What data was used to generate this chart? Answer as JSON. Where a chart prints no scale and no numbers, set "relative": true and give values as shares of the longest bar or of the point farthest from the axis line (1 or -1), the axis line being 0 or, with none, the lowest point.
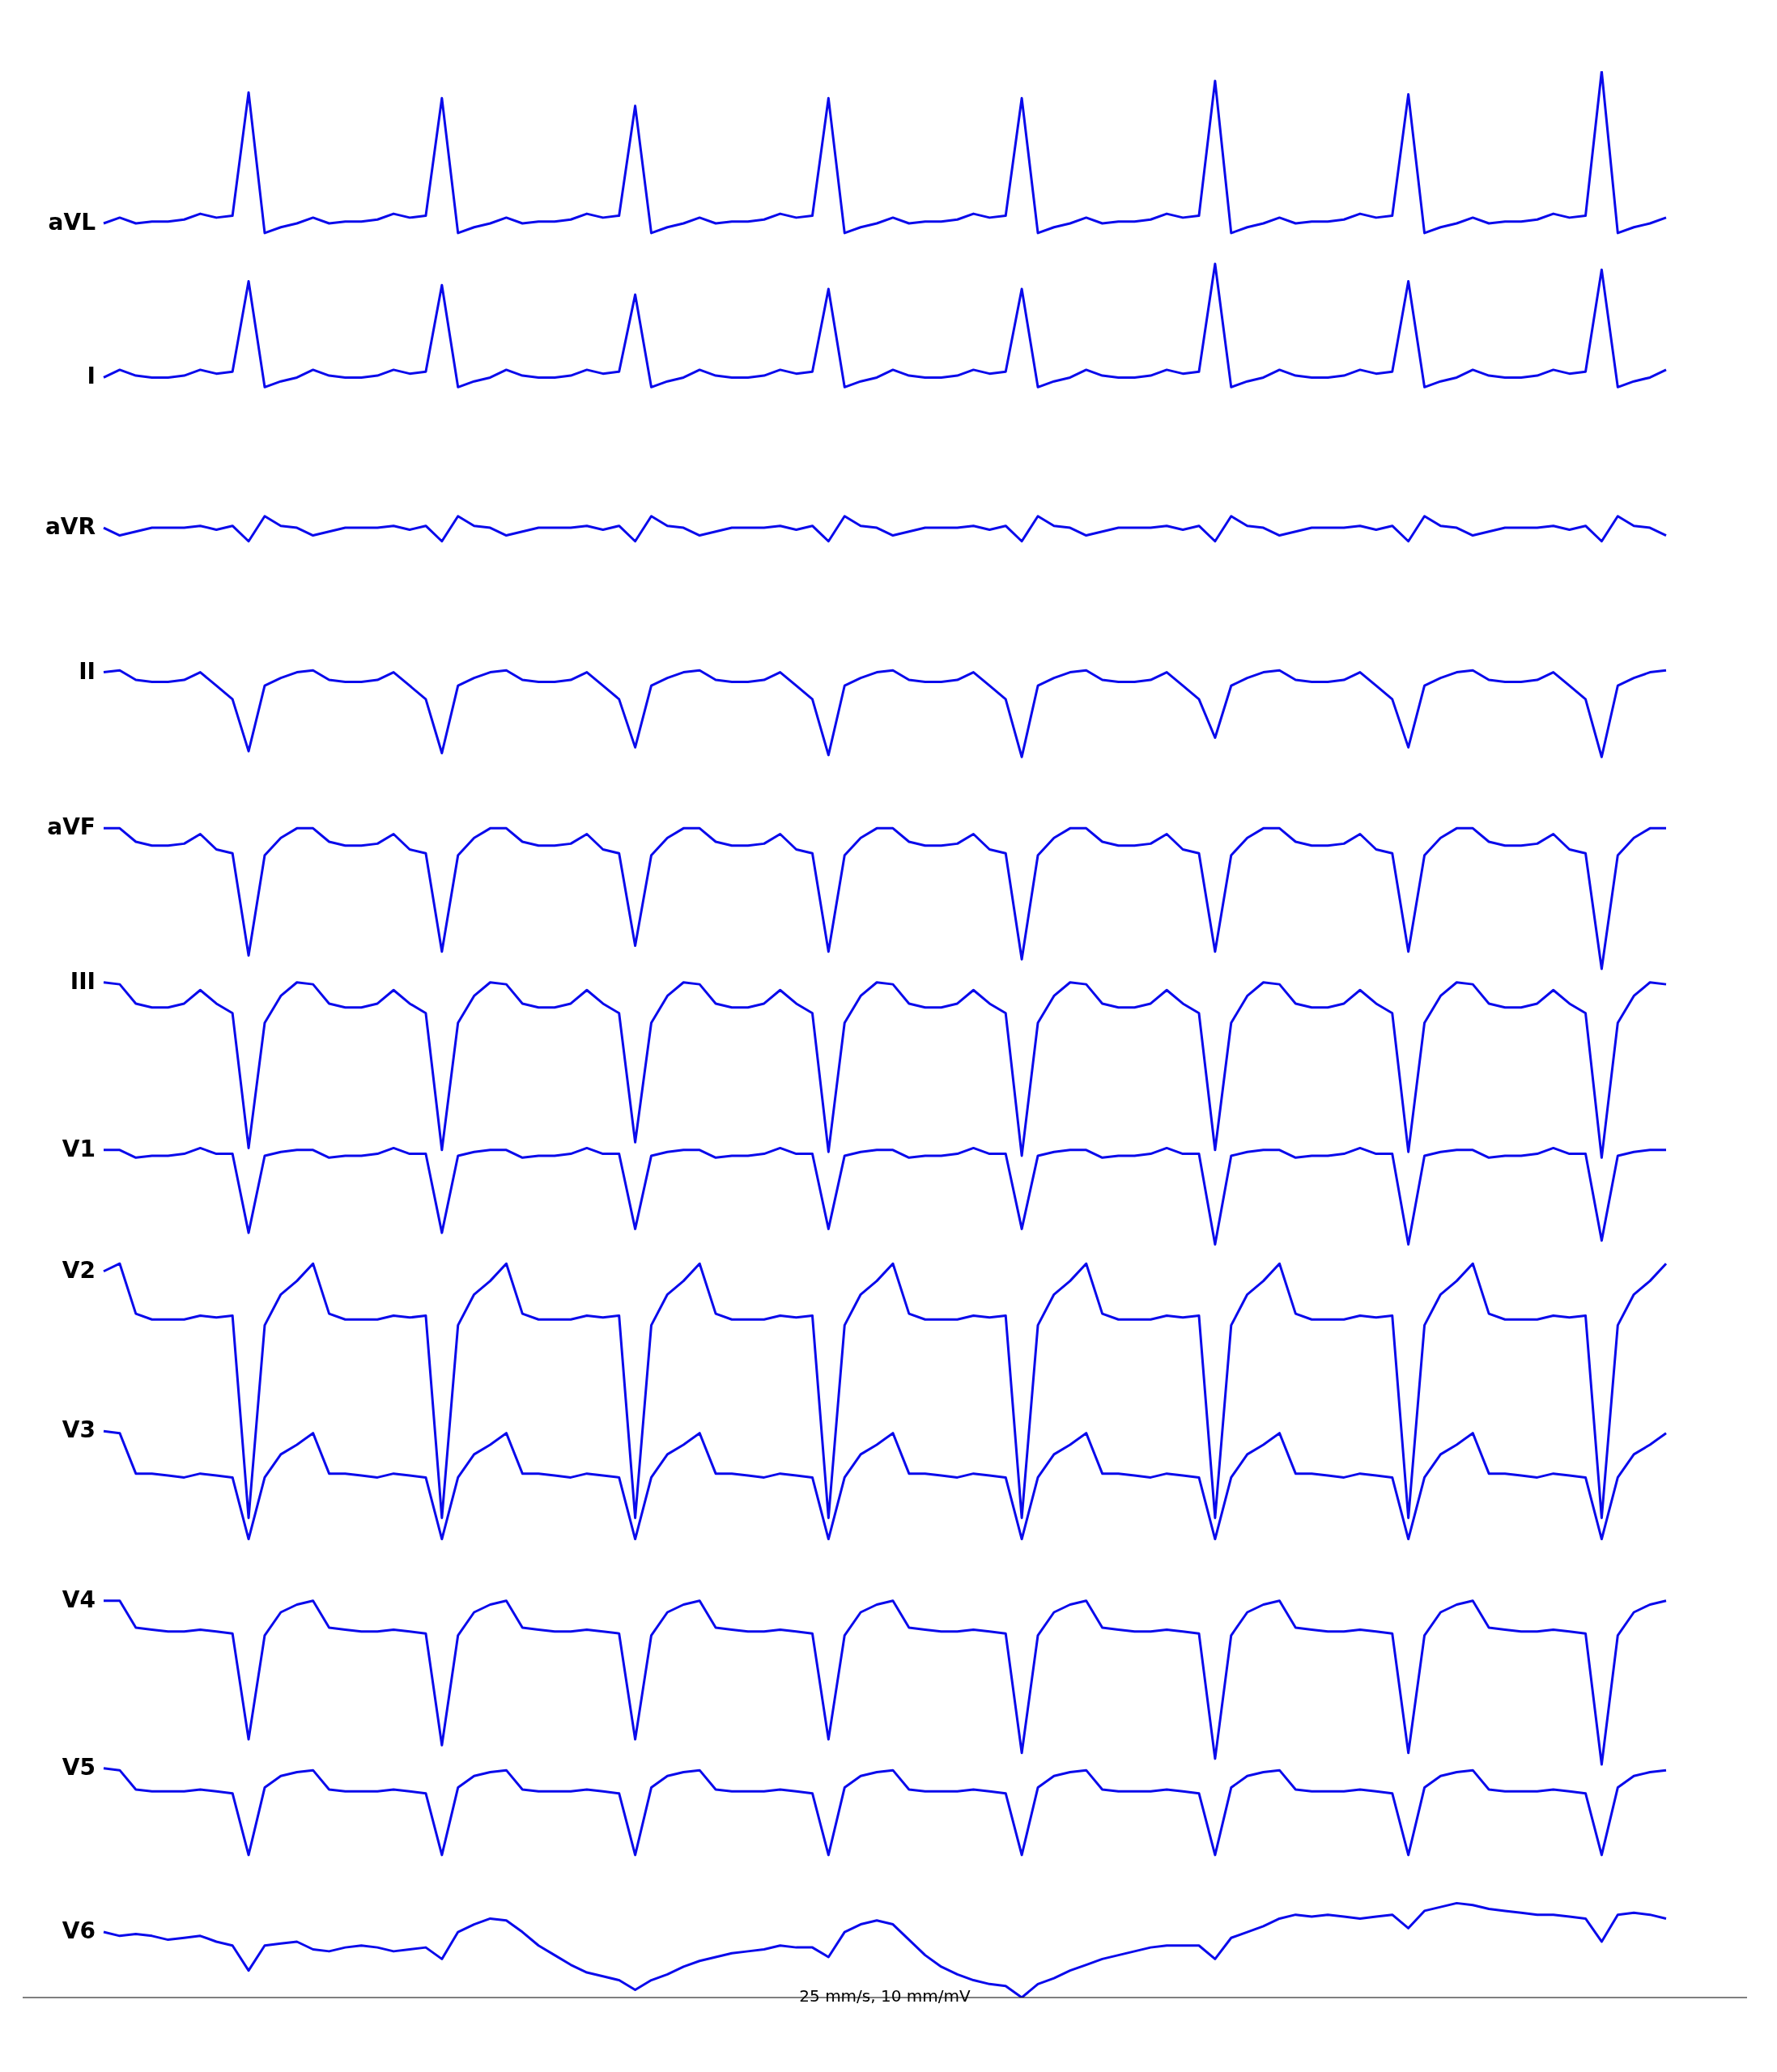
{
  "chart_data": {
    "type": "line",
    "relative": true,
    "legend": false,
    "marker": "none",
    "line_style": "solid",
    "categories": [
      null,
      null,
      null,
      null,
      null,
      null,
      null,
      null,
      null,
      null,
      null,
      null,
      null,
      null,
      null,
      null,
      null,
      null,
      null,
      null,
      null,
      null,
      null,
      null,
      null,
      null,
      null,
      null,
      null,
      null,
      null,
      null,
      null,
      null,
      null,
      null,
      null,
      null,
      null,
      null,
      null,
      null,
      null,
      null,
      null,
      null,
      null,
      null,
      null,
      null,
      null,
      null,
      null,
      null,
      null,
      null,
      null,
      null,
      null,
      null,
      null,
      null,
      null,
      null,
      null,
      null,
      null,
      null,
      null,
      null,
      null,
      null,
      null,
      null,
      null,
      null,
      null,
      null,
      null,
      null,
      null,
      null,
      null,
      null,
      null,
      null,
      null,
      null,
      null,
      null,
      null,
      null,
      null,
      null,
      null,
      null,
      null,
      null
    ],
    "annotations": [
      "25 mm/s, 10 mm/mV"
    ],
    "series": [
      {
        "name": "aVL",
        "color": "#0a0aeb",
        "values": [
          0.921,
          0.924,
          0.921,
          0.922,
          0.922,
          0.923,
          0.926,
          0.924,
          0.925,
          0.989,
          0.916,
          0.919,
          0.921,
          0.924,
          0.921,
          0.922,
          0.922,
          0.923,
          0.926,
          0.924,
          0.925,
          0.986,
          0.916,
          0.919,
          0.921,
          0.924,
          0.921,
          0.922,
          0.922,
          0.923,
          0.926,
          0.924,
          0.925,
          0.982,
          0.916,
          0.919,
          0.921,
          0.924,
          0.921,
          0.922,
          0.922,
          0.923,
          0.926,
          0.924,
          0.925,
          0.986,
          0.916,
          0.919,
          0.921,
          0.924,
          0.921,
          0.922,
          0.922,
          0.923,
          0.926,
          0.924,
          0.925,
          0.986,
          0.916,
          0.919,
          0.921,
          0.924,
          0.921,
          0.922,
          0.922,
          0.923,
          0.926,
          0.924,
          0.925,
          0.995,
          0.916,
          0.919,
          0.921,
          0.924,
          0.921,
          0.922,
          0.922,
          0.923,
          0.926,
          0.924,
          0.925,
          0.988,
          0.916,
          0.919,
          0.921,
          0.924,
          0.921,
          0.922,
          0.922,
          0.923,
          0.926,
          0.924,
          0.925,
          1,
          0.916,
          0.919,
          0.921,
          0.924
        ]
      },
      {
        "name": "I",
        "color": "#0a0aeb",
        "values": [
          0.841,
          0.845,
          0.842,
          0.841,
          0.841,
          0.842,
          0.845,
          0.843,
          0.844,
          0.891,
          0.836,
          0.839,
          0.841,
          0.845,
          0.842,
          0.841,
          0.841,
          0.842,
          0.845,
          0.843,
          0.844,
          0.889,
          0.836,
          0.839,
          0.841,
          0.845,
          0.842,
          0.841,
          0.841,
          0.842,
          0.845,
          0.843,
          0.844,
          0.884,
          0.836,
          0.839,
          0.841,
          0.845,
          0.842,
          0.841,
          0.841,
          0.842,
          0.845,
          0.843,
          0.844,
          0.887,
          0.836,
          0.839,
          0.841,
          0.845,
          0.842,
          0.841,
          0.841,
          0.842,
          0.845,
          0.843,
          0.844,
          0.887,
          0.836,
          0.839,
          0.841,
          0.845,
          0.842,
          0.841,
          0.841,
          0.842,
          0.845,
          0.843,
          0.844,
          0.9,
          0.836,
          0.839,
          0.841,
          0.845,
          0.842,
          0.841,
          0.841,
          0.842,
          0.845,
          0.843,
          0.844,
          0.891,
          0.836,
          0.839,
          0.841,
          0.845,
          0.842,
          0.841,
          0.841,
          0.842,
          0.845,
          0.843,
          0.844,
          0.897,
          0.836,
          0.839,
          0.841,
          0.845
        ]
      },
      {
        "name": "aVR",
        "color": "#0a0aeb",
        "values": [
          0.763,
          0.759,
          0.761,
          0.763,
          0.763,
          0.763,
          0.764,
          0.762,
          0.764,
          0.756,
          0.769,
          0.764,
          0.763,
          0.759,
          0.761,
          0.763,
          0.763,
          0.763,
          0.764,
          0.762,
          0.764,
          0.756,
          0.769,
          0.764,
          0.763,
          0.759,
          0.761,
          0.763,
          0.763,
          0.763,
          0.764,
          0.762,
          0.764,
          0.756,
          0.769,
          0.764,
          0.763,
          0.759,
          0.761,
          0.763,
          0.763,
          0.763,
          0.764,
          0.762,
          0.764,
          0.756,
          0.769,
          0.764,
          0.763,
          0.759,
          0.761,
          0.763,
          0.763,
          0.763,
          0.764,
          0.762,
          0.764,
          0.756,
          0.769,
          0.764,
          0.763,
          0.759,
          0.761,
          0.763,
          0.763,
          0.763,
          0.764,
          0.762,
          0.764,
          0.756,
          0.769,
          0.764,
          0.763,
          0.759,
          0.761,
          0.763,
          0.763,
          0.763,
          0.764,
          0.762,
          0.764,
          0.756,
          0.769,
          0.764,
          0.763,
          0.759,
          0.761,
          0.763,
          0.763,
          0.763,
          0.764,
          0.762,
          0.764,
          0.756,
          0.769,
          0.764,
          0.763,
          0.759
        ]
      },
      {
        "name": "II",
        "color": "#0a0aeb",
        "values": [
          0.688,
          0.689,
          0.684,
          0.683,
          0.683,
          0.684,
          0.688,
          0.681,
          0.674,
          0.647,
          0.681,
          0.685,
          0.688,
          0.689,
          0.684,
          0.683,
          0.683,
          0.684,
          0.688,
          0.681,
          0.674,
          0.646,
          0.681,
          0.685,
          0.688,
          0.689,
          0.684,
          0.683,
          0.683,
          0.684,
          0.688,
          0.681,
          0.674,
          0.649,
          0.681,
          0.685,
          0.688,
          0.689,
          0.684,
          0.683,
          0.683,
          0.684,
          0.688,
          0.681,
          0.674,
          0.645,
          0.681,
          0.685,
          0.688,
          0.689,
          0.684,
          0.683,
          0.683,
          0.684,
          0.688,
          0.681,
          0.674,
          0.644,
          0.681,
          0.685,
          0.688,
          0.689,
          0.684,
          0.683,
          0.683,
          0.684,
          0.688,
          0.681,
          0.674,
          0.654,
          0.681,
          0.685,
          0.688,
          0.689,
          0.684,
          0.683,
          0.683,
          0.684,
          0.688,
          0.681,
          0.674,
          0.649,
          0.681,
          0.685,
          0.688,
          0.689,
          0.684,
          0.683,
          0.683,
          0.684,
          0.688,
          0.681,
          0.674,
          0.644,
          0.681,
          0.685,
          0.688,
          0.689
        ]
      },
      {
        "name": "aVF",
        "color": "#0a0aeb",
        "values": [
          0.607,
          0.607,
          0.6,
          0.598,
          0.598,
          0.599,
          0.604,
          0.596,
          0.594,
          0.541,
          0.593,
          0.602,
          0.607,
          0.607,
          0.6,
          0.598,
          0.598,
          0.599,
          0.604,
          0.596,
          0.594,
          0.543,
          0.593,
          0.602,
          0.607,
          0.607,
          0.6,
          0.598,
          0.598,
          0.599,
          0.604,
          0.596,
          0.594,
          0.546,
          0.593,
          0.602,
          0.607,
          0.607,
          0.6,
          0.598,
          0.598,
          0.599,
          0.604,
          0.596,
          0.594,
          0.543,
          0.593,
          0.602,
          0.607,
          0.607,
          0.6,
          0.598,
          0.598,
          0.599,
          0.604,
          0.596,
          0.594,
          0.539,
          0.593,
          0.602,
          0.607,
          0.607,
          0.6,
          0.598,
          0.598,
          0.599,
          0.604,
          0.596,
          0.594,
          0.543,
          0.593,
          0.602,
          0.607,
          0.607,
          0.6,
          0.598,
          0.598,
          0.599,
          0.604,
          0.596,
          0.594,
          0.543,
          0.593,
          0.602,
          0.607,
          0.607,
          0.6,
          0.598,
          0.598,
          0.599,
          0.604,
          0.596,
          0.594,
          0.534,
          0.593,
          0.602,
          0.607,
          0.607
        ]
      },
      {
        "name": "III",
        "color": "#0a0aeb",
        "values": [
          0.527,
          0.526,
          0.516,
          0.514,
          0.514,
          0.516,
          0.523,
          0.516,
          0.511,
          0.441,
          0.506,
          0.52,
          0.527,
          0.526,
          0.516,
          0.514,
          0.514,
          0.516,
          0.523,
          0.516,
          0.511,
          0.44,
          0.506,
          0.52,
          0.527,
          0.526,
          0.516,
          0.514,
          0.514,
          0.516,
          0.523,
          0.516,
          0.511,
          0.444,
          0.506,
          0.52,
          0.527,
          0.526,
          0.516,
          0.514,
          0.514,
          0.516,
          0.523,
          0.516,
          0.511,
          0.439,
          0.506,
          0.52,
          0.527,
          0.526,
          0.516,
          0.514,
          0.514,
          0.516,
          0.523,
          0.516,
          0.511,
          0.437,
          0.506,
          0.52,
          0.527,
          0.526,
          0.516,
          0.514,
          0.514,
          0.516,
          0.523,
          0.516,
          0.511,
          0.44,
          0.506,
          0.52,
          0.527,
          0.526,
          0.516,
          0.514,
          0.514,
          0.516,
          0.523,
          0.516,
          0.511,
          0.439,
          0.506,
          0.52,
          0.527,
          0.526,
          0.516,
          0.514,
          0.514,
          0.516,
          0.523,
          0.516,
          0.511,
          0.436,
          0.506,
          0.52,
          0.527,
          0.526
        ]
      },
      {
        "name": "V1",
        "color": "#0a0aeb",
        "values": [
          0.44,
          0.44,
          0.436,
          0.437,
          0.437,
          0.438,
          0.441,
          0.438,
          0.438,
          0.397,
          0.437,
          0.439,
          0.44,
          0.44,
          0.436,
          0.437,
          0.437,
          0.438,
          0.441,
          0.438,
          0.438,
          0.397,
          0.437,
          0.439,
          0.44,
          0.44,
          0.436,
          0.437,
          0.437,
          0.438,
          0.441,
          0.438,
          0.438,
          0.399,
          0.437,
          0.439,
          0.44,
          0.44,
          0.436,
          0.437,
          0.437,
          0.438,
          0.441,
          0.438,
          0.438,
          0.399,
          0.437,
          0.439,
          0.44,
          0.44,
          0.436,
          0.437,
          0.437,
          0.438,
          0.441,
          0.438,
          0.438,
          0.399,
          0.437,
          0.439,
          0.44,
          0.44,
          0.436,
          0.437,
          0.437,
          0.438,
          0.441,
          0.438,
          0.438,
          0.391,
          0.437,
          0.439,
          0.44,
          0.44,
          0.436,
          0.437,
          0.437,
          0.438,
          0.441,
          0.438,
          0.438,
          0.391,
          0.437,
          0.439,
          0.44,
          0.44,
          0.436,
          0.437,
          0.437,
          0.438,
          0.441,
          0.438,
          0.438,
          0.393,
          0.437,
          0.439,
          0.44,
          0.44
        ]
      },
      {
        "name": "V2",
        "color": "#0a0aeb",
        "values": [
          0.377,
          0.381,
          0.355,
          0.352,
          0.352,
          0.352,
          0.354,
          0.353,
          0.354,
          0.249,
          0.349,
          0.365,
          0.372,
          0.381,
          0.355,
          0.352,
          0.352,
          0.352,
          0.354,
          0.353,
          0.354,
          0.249,
          0.349,
          0.365,
          0.372,
          0.381,
          0.355,
          0.352,
          0.352,
          0.352,
          0.354,
          0.353,
          0.354,
          0.249,
          0.349,
          0.365,
          0.372,
          0.381,
          0.355,
          0.352,
          0.352,
          0.352,
          0.354,
          0.353,
          0.354,
          0.249,
          0.349,
          0.365,
          0.372,
          0.381,
          0.355,
          0.352,
          0.352,
          0.352,
          0.354,
          0.353,
          0.354,
          0.249,
          0.349,
          0.365,
          0.372,
          0.381,
          0.355,
          0.352,
          0.352,
          0.352,
          0.354,
          0.353,
          0.354,
          0.249,
          0.349,
          0.365,
          0.372,
          0.381,
          0.355,
          0.352,
          0.352,
          0.352,
          0.354,
          0.353,
          0.354,
          0.249,
          0.349,
          0.365,
          0.372,
          0.381,
          0.355,
          0.352,
          0.352,
          0.352,
          0.354,
          0.353,
          0.354,
          0.249,
          0.349,
          0.365,
          0.372,
          0.381
        ]
      },
      {
        "name": "V3",
        "color": "#0a0aeb",
        "values": [
          0.294,
          0.293,
          0.272,
          0.272,
          0.271,
          0.27,
          0.272,
          0.271,
          0.27,
          0.238,
          0.27,
          0.282,
          0.287,
          0.293,
          0.272,
          0.272,
          0.271,
          0.27,
          0.272,
          0.271,
          0.27,
          0.238,
          0.27,
          0.282,
          0.287,
          0.293,
          0.272,
          0.272,
          0.271,
          0.27,
          0.272,
          0.271,
          0.27,
          0.238,
          0.27,
          0.282,
          0.287,
          0.293,
          0.272,
          0.272,
          0.271,
          0.27,
          0.272,
          0.271,
          0.27,
          0.238,
          0.27,
          0.282,
          0.287,
          0.293,
          0.272,
          0.272,
          0.271,
          0.27,
          0.272,
          0.271,
          0.27,
          0.238,
          0.27,
          0.282,
          0.287,
          0.293,
          0.272,
          0.272,
          0.271,
          0.27,
          0.272,
          0.271,
          0.27,
          0.238,
          0.27,
          0.282,
          0.287,
          0.293,
          0.272,
          0.272,
          0.271,
          0.27,
          0.272,
          0.271,
          0.27,
          0.238,
          0.27,
          0.282,
          0.287,
          0.293,
          0.272,
          0.272,
          0.271,
          0.27,
          0.272,
          0.271,
          0.27,
          0.238,
          0.27,
          0.282,
          0.287,
          0.293
        ]
      },
      {
        "name": "V4",
        "color": "#0a0aeb",
        "values": [
          0.206,
          0.206,
          0.192,
          0.191,
          0.19,
          0.19,
          0.191,
          0.19,
          0.189,
          0.134,
          0.188,
          0.2,
          0.204,
          0.206,
          0.192,
          0.191,
          0.19,
          0.19,
          0.191,
          0.19,
          0.189,
          0.131,
          0.188,
          0.2,
          0.204,
          0.206,
          0.192,
          0.191,
          0.19,
          0.19,
          0.191,
          0.19,
          0.189,
          0.134,
          0.188,
          0.2,
          0.204,
          0.206,
          0.192,
          0.191,
          0.19,
          0.19,
          0.191,
          0.19,
          0.189,
          0.134,
          0.188,
          0.2,
          0.204,
          0.206,
          0.192,
          0.191,
          0.19,
          0.19,
          0.191,
          0.19,
          0.189,
          0.127,
          0.188,
          0.2,
          0.204,
          0.206,
          0.192,
          0.191,
          0.19,
          0.19,
          0.191,
          0.19,
          0.189,
          0.124,
          0.188,
          0.2,
          0.204,
          0.206,
          0.192,
          0.191,
          0.19,
          0.19,
          0.191,
          0.19,
          0.189,
          0.127,
          0.188,
          0.2,
          0.204,
          0.206,
          0.192,
          0.191,
          0.19,
          0.19,
          0.191,
          0.19,
          0.189,
          0.121,
          0.188,
          0.2,
          0.204,
          0.206
        ]
      },
      {
        "name": "V5",
        "color": "#0a0aeb",
        "values": [
          0.119,
          0.118,
          0.108,
          0.107,
          0.107,
          0.107,
          0.108,
          0.107,
          0.106,
          0.074,
          0.109,
          0.115,
          0.117,
          0.118,
          0.108,
          0.107,
          0.107,
          0.107,
          0.108,
          0.107,
          0.106,
          0.074,
          0.109,
          0.115,
          0.117,
          0.118,
          0.108,
          0.107,
          0.107,
          0.107,
          0.108,
          0.107,
          0.106,
          0.074,
          0.109,
          0.115,
          0.117,
          0.118,
          0.108,
          0.107,
          0.107,
          0.107,
          0.108,
          0.107,
          0.106,
          0.074,
          0.109,
          0.115,
          0.117,
          0.118,
          0.108,
          0.107,
          0.107,
          0.107,
          0.108,
          0.107,
          0.106,
          0.074,
          0.109,
          0.115,
          0.117,
          0.118,
          0.108,
          0.107,
          0.107,
          0.107,
          0.108,
          0.107,
          0.106,
          0.074,
          0.109,
          0.115,
          0.117,
          0.118,
          0.108,
          0.107,
          0.107,
          0.107,
          0.108,
          0.107,
          0.106,
          0.074,
          0.109,
          0.115,
          0.117,
          0.118,
          0.108,
          0.107,
          0.107,
          0.107,
          0.108,
          0.107,
          0.106,
          0.074,
          0.109,
          0.115,
          0.117,
          0.118
        ]
      },
      {
        "name": "V6",
        "color": "#0a0aeb",
        "values": [
          0.034,
          0.032,
          0.033,
          0.032,
          0.03,
          0.031,
          0.032,
          0.029,
          0.027,
          0.014,
          0.027,
          0.028,
          0.029,
          0.025,
          0.024,
          0.026,
          0.027,
          0.026,
          0.024,
          0.025,
          0.026,
          0.02,
          0.034,
          0.038,
          0.041,
          0.04,
          0.034,
          0.027,
          0.022,
          0.017,
          0.013,
          0.011,
          0.009,
          0.004,
          0.009,
          0.012,
          0.016,
          0.019,
          0.021,
          0.023,
          0.024,
          0.025,
          0.027,
          0.026,
          0.026,
          0.021,
          0.034,
          0.038,
          0.04,
          0.038,
          0.03,
          0.022,
          0.016,
          0.012,
          0.009,
          0.007,
          0.006,
          0,
          0.007,
          0.01,
          0.014,
          0.017,
          0.02,
          0.022,
          0.024,
          0.026,
          0.027,
          0.027,
          0.027,
          0.02,
          0.031,
          0.034,
          0.037,
          0.041,
          0.043,
          0.042,
          0.043,
          0.042,
          0.041,
          0.042,
          0.043,
          0.036,
          0.045,
          0.047,
          0.049,
          0.048,
          0.046,
          0.045,
          0.044,
          0.043,
          0.043,
          0.042,
          0.041,
          0.029,
          0.043,
          0.044,
          0.043,
          0.041
        ]
      }
    ]
  }
}
